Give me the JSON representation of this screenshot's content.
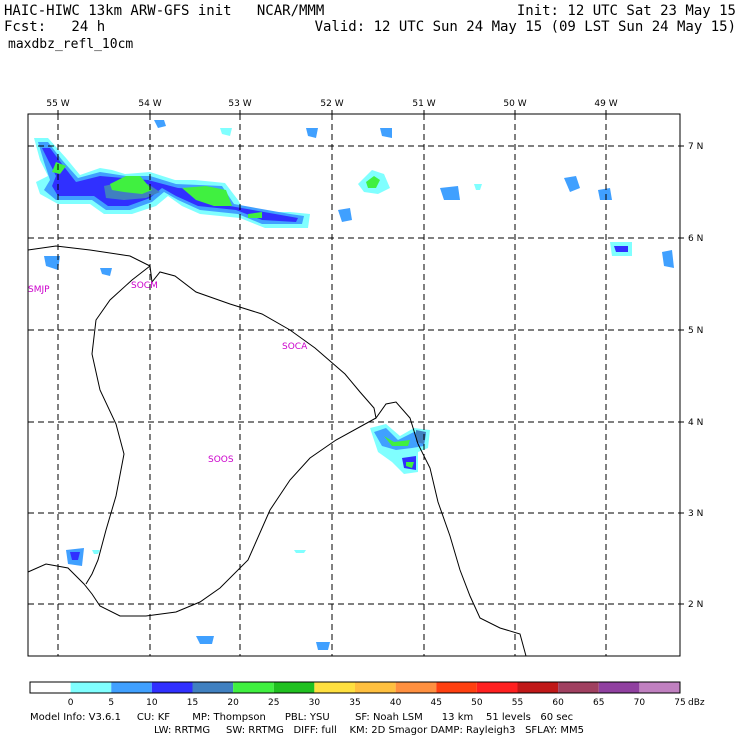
{
  "header": {
    "title_left": "HAIC-HIWC 13km ARW-GFS init   NCAR/MMM",
    "forecast": "Fcst:   24 h",
    "field": "maxdbz_refl_10cm",
    "init": "Init: 12 UTC Sat 23 May 15",
    "valid": "Valid: 12 UTC Sun 24 May 15 (09 LST Sun 24 May 15)"
  },
  "map": {
    "lon_ticks": [
      "55 W",
      "54 W",
      "53 W",
      "52 W",
      "51 W",
      "50 W",
      "49 W"
    ],
    "lat_ticks": [
      "7 N",
      "6 N",
      "5 N",
      "4 N",
      "3 N",
      "2 N"
    ],
    "stations": [
      {
        "label": "SMJP"
      },
      {
        "label": "SOCM"
      },
      {
        "label": "SOCA"
      },
      {
        "label": "SOOS"
      }
    ],
    "colors": {
      "cyan_light": "#80ffff",
      "blue_light": "#40a0ff",
      "blue": "#3030ff",
      "steelblue": "#4080c0",
      "green_light": "#40f040",
      "green": "#20c020",
      "coast": "#000000",
      "station_label": "#cc00cc"
    }
  },
  "colorbar": {
    "labels": [
      "0",
      "5",
      "10",
      "15",
      "20",
      "25",
      "30",
      "35",
      "40",
      "45",
      "50",
      "55",
      "60",
      "65",
      "70",
      "75"
    ],
    "colors": [
      "#ffffff",
      "#80ffff",
      "#40a0ff",
      "#3030ff",
      "#4080c0",
      "#40f040",
      "#20c020",
      "#ffe040",
      "#ffc040",
      "#ff9040",
      "#ff4010",
      "#ff2020",
      "#c01818",
      "#a04060",
      "#9040a0",
      "#c080c0"
    ],
    "unit": "dBz"
  },
  "footer": {
    "line1": "Model Info: V3.6.1     CU: KF       MP: Thompson      PBL: YSU        SF: Noah LSM      13 km    51 levels   60 sec",
    "line2": "LW: RRTMG     SW: RRTMG   DIFF: full    KM: 2D Smagor DAMP: Rayleigh3   SFLAY: MM5"
  }
}
